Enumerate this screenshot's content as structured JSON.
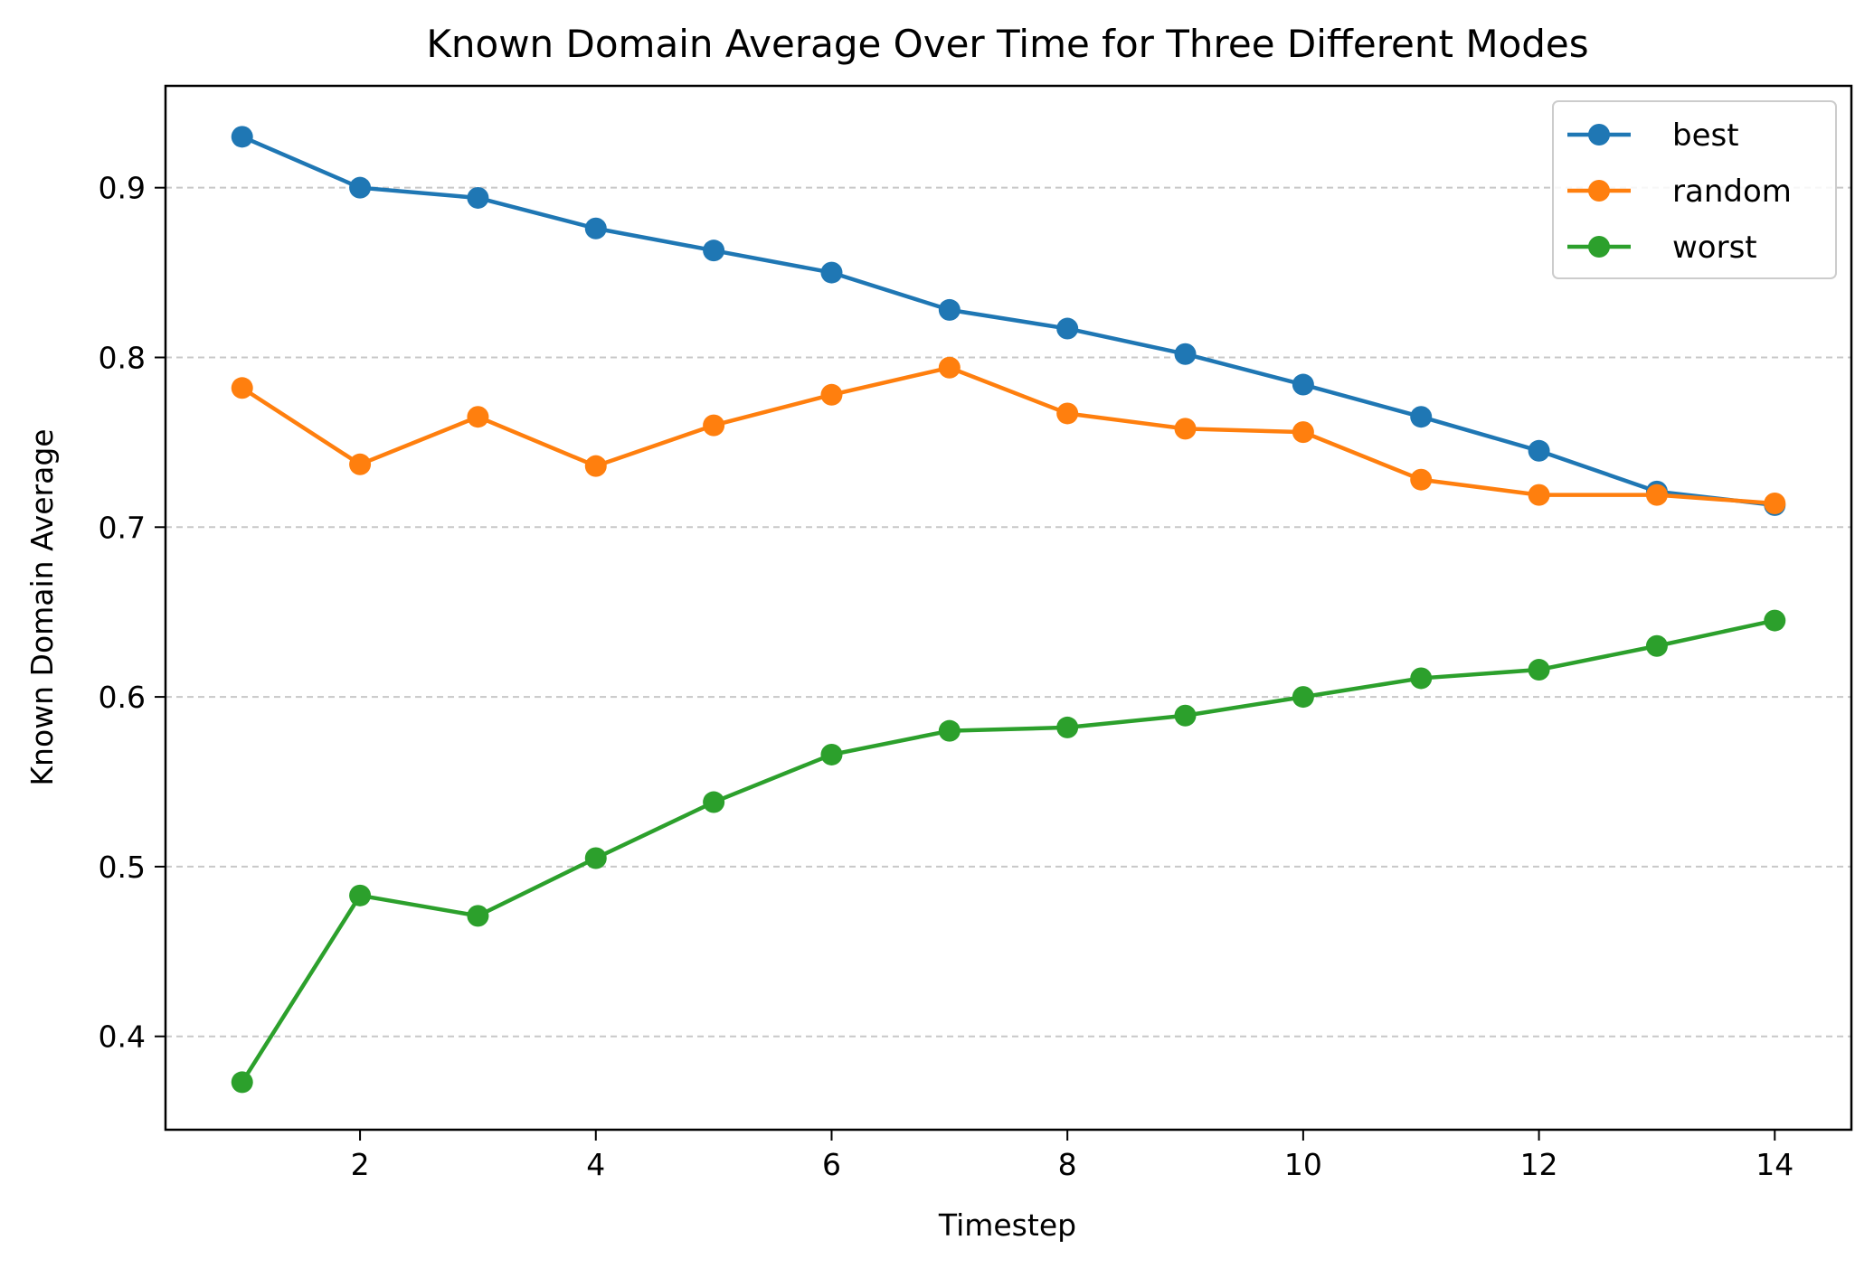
{
  "chart_data": {
    "type": "line",
    "title": "Known Domain Average Over Time for Three Different Modes",
    "xlabel": "Timestep",
    "ylabel": "Known Domain Average",
    "x": [
      1,
      2,
      3,
      4,
      5,
      6,
      7,
      8,
      9,
      10,
      11,
      12,
      13,
      14
    ],
    "xlim": [
      0.35,
      14.65
    ],
    "ylim": [
      0.345,
      0.96
    ],
    "xticks": [
      2,
      4,
      6,
      8,
      10,
      12,
      14
    ],
    "yticks": [
      0.4,
      0.5,
      0.6,
      0.7,
      0.8,
      0.9
    ],
    "ytick_labels": [
      "0.4",
      "0.5",
      "0.6",
      "0.7",
      "0.8",
      "0.9"
    ],
    "grid": "y-dashed",
    "legend_position": "top-right",
    "series": [
      {
        "name": "best",
        "color": "#1f77b4",
        "values": [
          0.93,
          0.9,
          0.894,
          0.876,
          0.863,
          0.85,
          0.828,
          0.817,
          0.802,
          0.784,
          0.765,
          0.745,
          0.721,
          0.713
        ]
      },
      {
        "name": "random",
        "color": "#ff7f0e",
        "values": [
          0.782,
          0.737,
          0.765,
          0.736,
          0.76,
          0.778,
          0.794,
          0.767,
          0.758,
          0.756,
          0.728,
          0.719,
          0.719,
          0.714
        ]
      },
      {
        "name": "worst",
        "color": "#2ca02c",
        "values": [
          0.373,
          0.483,
          0.471,
          0.505,
          0.538,
          0.566,
          0.58,
          0.582,
          0.589,
          0.6,
          0.611,
          0.616,
          0.63,
          0.645
        ]
      }
    ]
  }
}
